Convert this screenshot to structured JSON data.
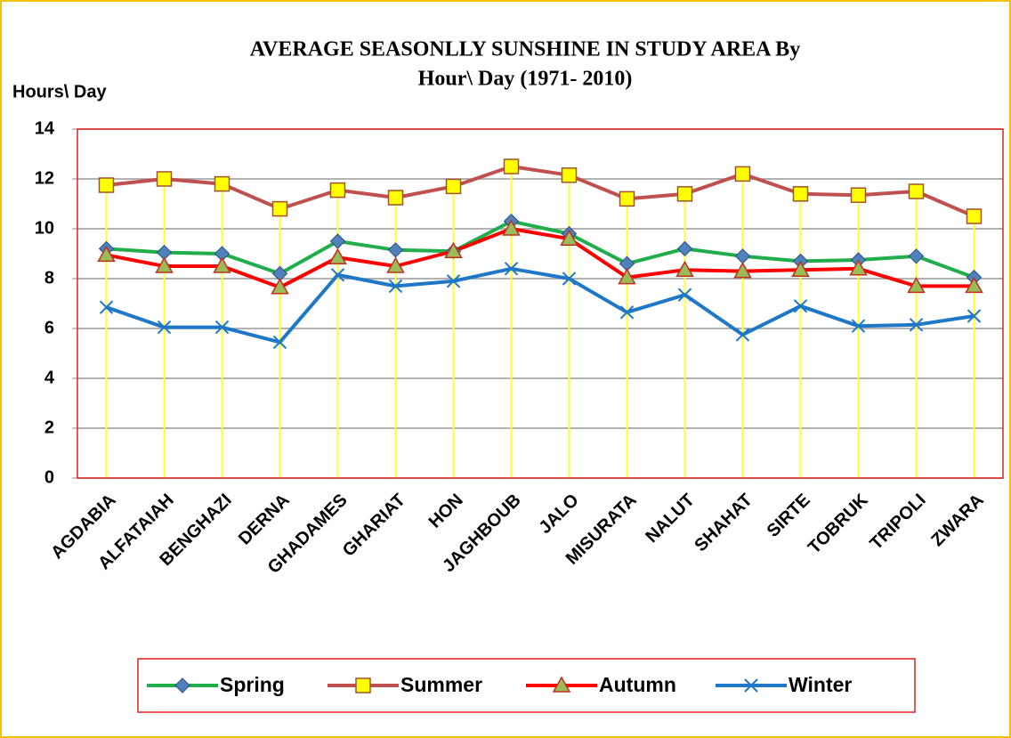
{
  "chart_data": {
    "type": "line",
    "title": [
      "AVERAGE SEASONLLY SUNSHINE IN STUDY AREA By",
      "Hour\\ Day (1971- 2010)"
    ],
    "y_label": "Hours\\ Day",
    "categories": [
      "AGDABIA",
      "ALFATAIAH",
      "BENGHAZI",
      "DERNA",
      "GHADAMES",
      "GHARIAT",
      "HON",
      "JAGHBOUB",
      "JALO",
      "MISURATA",
      "NALUT",
      "SHAHAT",
      "SIRTE",
      "TOBRUK",
      "TRIPOLI",
      "ZWARA"
    ],
    "series": [
      {
        "name": "Spring",
        "color": "#1fae4b",
        "marker": "diamond",
        "marker_color": "#4f81bd",
        "values": [
          9.2,
          9.05,
          9.0,
          8.2,
          9.5,
          9.15,
          9.1,
          10.3,
          9.8,
          8.6,
          9.2,
          8.9,
          8.7,
          8.75,
          8.9,
          8.05
        ]
      },
      {
        "name": "Summer",
        "color": "#c0504d",
        "marker": "square",
        "marker_color": "#ffff00",
        "values": [
          11.75,
          12.0,
          11.8,
          10.8,
          11.55,
          11.25,
          11.7,
          12.5,
          12.15,
          11.2,
          11.4,
          12.2,
          11.4,
          11.35,
          11.5,
          10.5
        ]
      },
      {
        "name": "Autumn",
        "color": "#ff0000",
        "marker": "triangle",
        "marker_color": "#9bbb59",
        "values": [
          8.95,
          8.5,
          8.5,
          7.65,
          8.85,
          8.5,
          9.1,
          10.0,
          9.6,
          8.05,
          8.35,
          8.3,
          8.35,
          8.4,
          7.7,
          7.7
        ]
      },
      {
        "name": "Winter",
        "color": "#1f77c8",
        "marker": "x",
        "marker_color": "#1f77c8",
        "values": [
          6.85,
          6.05,
          6.05,
          5.45,
          8.15,
          7.7,
          7.9,
          8.4,
          8.0,
          6.65,
          7.35,
          5.75,
          6.9,
          6.1,
          6.15,
          6.5
        ]
      }
    ],
    "ylim": [
      0,
      14
    ],
    "yticks": [
      0,
      2,
      4,
      6,
      8,
      10,
      12,
      14
    ],
    "grid": true,
    "drop_lines": true,
    "legend": "bottom"
  }
}
